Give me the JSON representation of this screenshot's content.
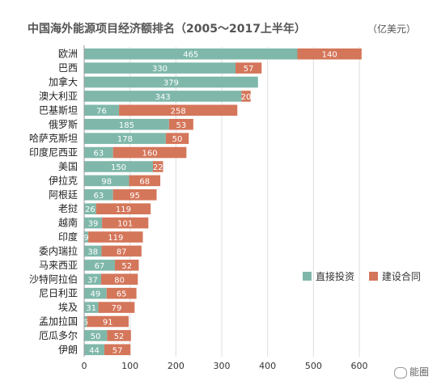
{
  "chart_data": {
    "type": "bar",
    "orientation": "horizontal",
    "stacked": true,
    "title": "中国海外能源项目经济额排名（2005～2017上半年）",
    "unit": "（亿美元）",
    "categories": [
      "欧洲",
      "巴西",
      "加拿大",
      "澳大利亚",
      "巴基斯坦",
      "俄罗斯",
      "哈萨克斯坦",
      "印度尼西亚",
      "美国",
      "伊拉克",
      "阿根廷",
      "老挝",
      "越南",
      "印度",
      "委内瑞拉",
      "马来西亚",
      "沙特阿拉伯",
      "尼日利亚",
      "埃及",
      "孟加拉国",
      "厄瓜多尔",
      "伊朗"
    ],
    "series": [
      {
        "name": "直接投资",
        "color": "#7fb8aa",
        "values": [
          465,
          330,
          379,
          343,
          76,
          185,
          178,
          63,
          150,
          98,
          63,
          26,
          39,
          9,
          38,
          67,
          37,
          49,
          31,
          6,
          50,
          44
        ]
      },
      {
        "name": "建设合同",
        "color": "#d4765a",
        "values": [
          140,
          57,
          0,
          20,
          258,
          53,
          50,
          160,
          22,
          68,
          95,
          119,
          101,
          119,
          87,
          52,
          80,
          65,
          79,
          91,
          52,
          57
        ]
      }
    ],
    "xlim": [
      0,
      600
    ],
    "xticks": [
      0,
      100,
      200,
      300,
      400,
      500,
      600
    ],
    "grid": true,
    "legend": "right"
  },
  "watermark": "能圈"
}
